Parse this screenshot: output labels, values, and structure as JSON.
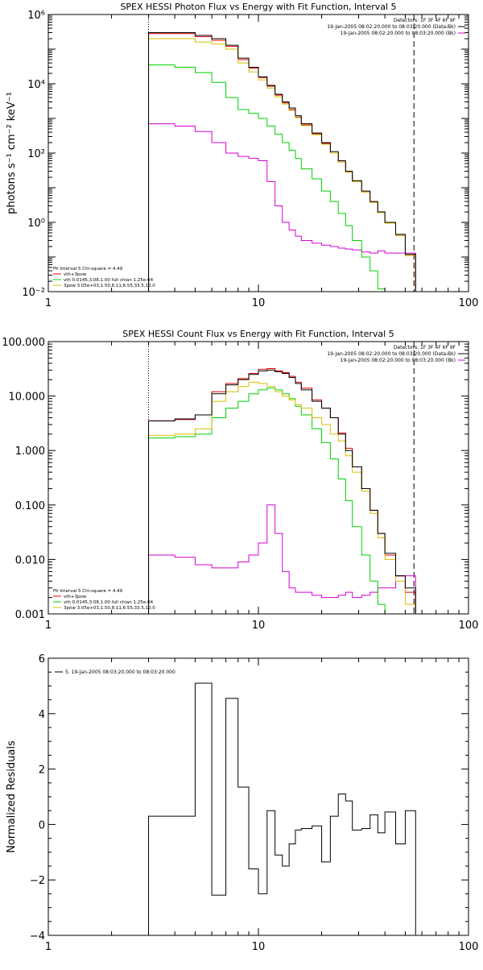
{
  "chart_data": [
    {
      "type": "line",
      "title": "SPEX HESSI Photon Flux vs Energy with Fit Function, Interval 5",
      "ylabel": "photons s⁻¹ cm⁻² keV⁻¹",
      "xlabel": "",
      "xscale": "log",
      "yscale": "log",
      "xlim": [
        1,
        100
      ],
      "ylim": [
        0.01,
        1000000
      ],
      "xticks": [
        {
          "v": 1,
          "label": "1"
        },
        {
          "v": 10,
          "label": "10"
        },
        {
          "v": 100,
          "label": "100"
        }
      ],
      "yticks": [
        {
          "v": 0.01,
          "label": "10⁻²"
        },
        {
          "v": 1,
          "label": "10⁰"
        },
        {
          "v": 100,
          "label": "10²"
        },
        {
          "v": 10000,
          "label": "10⁴"
        },
        {
          "v": 1000000,
          "label": "10⁶"
        }
      ],
      "grid": false,
      "legend_top": [
        "Detectors: 1F 3F 4F 6F 9F",
        "19-Jan-2005 08:02:20.000 to 08:03:20.000 (Data-Bk)",
        "19-Jan-2005 08:02:20.000 to 08:03:20.000 (Bk)"
      ],
      "legend_bottom": [
        "Fit Interval 5   Chi-square = 4.49",
        "vth+3pow",
        "vth 0.0145,3.08,1.00  full chian 1.25e-04",
        "3pow 3.05e+03,1.50,8.11,6.55,33.5,10.0"
      ],
      "vlines": [
        {
          "x": 3,
          "style": "dotted"
        },
        {
          "x": 55,
          "style": "dashed"
        }
      ],
      "edges": [
        3,
        4,
        5,
        6,
        7,
        8,
        9,
        10,
        11,
        12,
        13,
        14,
        15,
        16,
        18,
        20,
        22,
        24,
        26,
        28,
        31,
        34,
        37,
        40,
        45,
        50,
        56
      ],
      "series": [
        {
          "name": "Data-Bk",
          "color": "#000000",
          "values": [
            300000,
            300000,
            250000,
            200000,
            130000,
            55000,
            30000,
            16000,
            9000,
            5000,
            3000,
            2000,
            1200,
            700,
            380,
            200,
            110,
            60,
            30,
            16,
            8,
            4,
            2,
            1,
            0.45,
            0.12
          ]
        },
        {
          "name": "Bk",
          "color": "#d400d4",
          "values": [
            700,
            600,
            420,
            200,
            100,
            80,
            70,
            60,
            15,
            3,
            1,
            0.6,
            0.4,
            0.3,
            0.25,
            0.22,
            0.2,
            0.18,
            0.17,
            0.16,
            0.14,
            0.13,
            0.15,
            0.13,
            0.13,
            0.13
          ]
        },
        {
          "name": "vth+3pow",
          "color": "#e00000",
          "values": [
            280000,
            280000,
            230000,
            180000,
            120000,
            50000,
            28000,
            15000,
            8500,
            4700,
            2800,
            1800,
            1100,
            650,
            360,
            190,
            100,
            55,
            28,
            15,
            7.5,
            3.8,
            1.9,
            0.95,
            0.42,
            0.11
          ]
        },
        {
          "name": "vth",
          "color": "#00d000",
          "values": [
            35000,
            30000,
            21000,
            11000,
            4000,
            1800,
            1400,
            1000,
            600,
            350,
            200,
            120,
            70,
            35,
            18,
            8,
            4,
            1.8,
            0.8,
            0.3,
            0.1,
            0.04,
            0.012,
            0.01,
            0.01,
            0.01
          ]
        },
        {
          "name": "3pow",
          "color": "#d8c000",
          "values": [
            200000,
            200000,
            160000,
            140000,
            100000,
            40000,
            22000,
            13000,
            7500,
            4200,
            2600,
            1700,
            1050,
            620,
            340,
            180,
            100,
            55,
            28,
            15,
            7.5,
            3.8,
            1.9,
            0.95,
            0.42,
            0.11
          ]
        }
      ]
    },
    {
      "type": "line",
      "title": "SPEX HESSI Count Flux vs Energy with Fit Function, Interval 5",
      "ylabel": "",
      "xlabel": "",
      "xscale": "log",
      "yscale": "log",
      "xlim": [
        1,
        100
      ],
      "ylim": [
        0.001,
        100
      ],
      "xticks": [
        {
          "v": 1,
          "label": "1"
        },
        {
          "v": 10,
          "label": "10"
        },
        {
          "v": 100,
          "label": "100"
        }
      ],
      "yticks": [
        {
          "v": 0.001,
          "label": "0.001"
        },
        {
          "v": 0.01,
          "label": "0.010"
        },
        {
          "v": 0.1,
          "label": "0.100"
        },
        {
          "v": 1,
          "label": "1.000"
        },
        {
          "v": 10,
          "label": "10.000"
        },
        {
          "v": 100,
          "label": "100.000"
        }
      ],
      "grid": false,
      "legend_top": [
        "Detectors: 1F 3F 4F 6F 9F",
        "19-Jan-2005 08:02:20.000 to 08:03:20.000 (Data-Bk)",
        "19-Jan-2005 08:02:20.000 to 08:03:20.000 (Bk)"
      ],
      "legend_bottom": [
        "Fit Interval 5   Chi-square = 4.49",
        "vth+3pow",
        "vth 0.0145,3.08,1.00  full chian 1.25e-04",
        "3pow 3.05e+03,1.50,8.11,6.55,33.5,10.0"
      ],
      "vlines": [
        {
          "x": 3,
          "style": "dotted"
        },
        {
          "x": 55,
          "style": "dashed"
        }
      ],
      "edges": [
        3,
        4,
        5,
        6,
        7,
        8,
        9,
        10,
        11,
        12,
        13,
        14,
        15,
        16,
        18,
        20,
        22,
        24,
        26,
        28,
        31,
        34,
        37,
        40,
        45,
        50,
        56
      ],
      "series": [
        {
          "name": "Data-Bk",
          "color": "#000000",
          "values": [
            3.5,
            3.8,
            4.5,
            11,
            16,
            20,
            25,
            29,
            30,
            28,
            26,
            22,
            17,
            13,
            8,
            6,
            4,
            2,
            1,
            0.5,
            0.2,
            0.08,
            0.03,
            0.013,
            0.005,
            0.003
          ]
        },
        {
          "name": "Bk",
          "color": "#d400d4",
          "values": [
            0.012,
            0.011,
            0.008,
            0.007,
            0.007,
            0.009,
            0.012,
            0.02,
            0.1,
            0.03,
            0.006,
            0.003,
            0.0025,
            0.0025,
            0.0022,
            0.002,
            0.002,
            0.0022,
            0.0025,
            0.002,
            0.0022,
            0.0025,
            0.003,
            0.003,
            0.005,
            0.005
          ]
        },
        {
          "name": "vth+3pow",
          "color": "#e00000",
          "values": [
            3.5,
            3.7,
            4.5,
            12,
            17,
            21,
            26,
            31,
            32,
            29,
            27,
            23,
            18,
            14,
            8.5,
            6,
            4,
            2.1,
            1.1,
            0.5,
            0.2,
            0.08,
            0.03,
            0.012,
            0.005,
            0.0025
          ]
        },
        {
          "name": "vth",
          "color": "#00d000",
          "values": [
            1.7,
            1.8,
            2,
            4,
            6,
            8,
            11,
            13,
            14,
            13,
            11,
            9,
            6.5,
            4.5,
            2.5,
            1.4,
            0.7,
            0.3,
            0.12,
            0.04,
            0.012,
            0.004,
            0.0015,
            0.001,
            0.001,
            0.001
          ]
        },
        {
          "name": "3pow",
          "color": "#d8c000",
          "values": [
            1.9,
            2,
            2.5,
            8,
            12,
            15,
            18,
            17,
            15,
            12,
            10,
            8.5,
            7,
            6,
            4,
            3,
            2,
            1.5,
            0.8,
            0.4,
            0.18,
            0.07,
            0.025,
            0.01,
            0.004,
            0.0015
          ]
        }
      ]
    },
    {
      "type": "line",
      "title": "",
      "ylabel": "Normalized Residuals",
      "xlabel": "",
      "xscale": "log",
      "yscale": "linear",
      "xlim": [
        1,
        100
      ],
      "ylim": [
        -4,
        6
      ],
      "xticks": [
        {
          "v": 1,
          "label": "1"
        },
        {
          "v": 10,
          "label": "10"
        },
        {
          "v": 100,
          "label": "100"
        }
      ],
      "yticks": [
        {
          "v": -4,
          "label": "−4"
        },
        {
          "v": -2,
          "label": "−2"
        },
        {
          "v": 0,
          "label": "0"
        },
        {
          "v": 2,
          "label": "2"
        },
        {
          "v": 4,
          "label": "4"
        },
        {
          "v": 6,
          "label": "6"
        }
      ],
      "grid": false,
      "legend_top": [
        "5. 19-Jan-2005 08:03:20.000 to 08:03:20.000"
      ],
      "legend_bottom": [],
      "vlines": [],
      "edges": [
        3,
        4,
        5,
        6,
        7,
        8,
        9,
        10,
        11,
        12,
        13,
        14,
        15,
        16,
        18,
        20,
        22,
        24,
        26,
        28,
        31,
        34,
        37,
        40,
        45,
        50,
        56
      ],
      "series": [
        {
          "name": "",
          "color": "#000000",
          "values": [
            0.3,
            0.3,
            5.1,
            -2.55,
            4.55,
            1.35,
            -1.6,
            -2.5,
            0.5,
            -1.1,
            -1.5,
            -0.7,
            -0.2,
            -0.15,
            -0.05,
            -1.35,
            0.3,
            1.1,
            0.85,
            -0.2,
            -0.15,
            0.35,
            -0.3,
            0.45,
            -0.7,
            0.5
          ]
        }
      ]
    }
  ]
}
